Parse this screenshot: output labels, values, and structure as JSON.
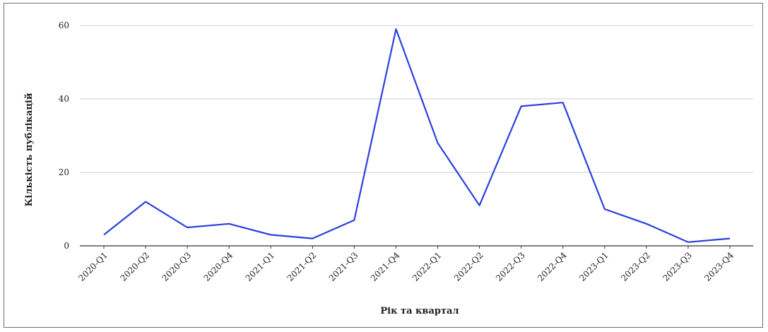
{
  "chart_data": {
    "type": "line",
    "xlabel": "Рік та квартал",
    "ylabel": "Кількість публікацій",
    "ylim": [
      0,
      60
    ],
    "yticks": [
      0,
      20,
      40,
      60
    ],
    "grid": true,
    "line_color": "#2b3fe0",
    "categories": [
      "2020-Q1",
      "2020-Q2",
      "2020-Q3",
      "2020-Q4",
      "2021-Q1",
      "2021-Q2",
      "2021-Q3",
      "2021-Q4",
      "2022-Q1",
      "2022-Q2",
      "2022-Q3",
      "2022-Q4",
      "2023-Q1",
      "2023-Q2",
      "2023-Q3",
      "2023-Q4"
    ],
    "series": [
      {
        "values": [
          3,
          12,
          5,
          6,
          3,
          2,
          7,
          59,
          28,
          11,
          38,
          39,
          10,
          6,
          1,
          2
        ]
      }
    ]
  }
}
